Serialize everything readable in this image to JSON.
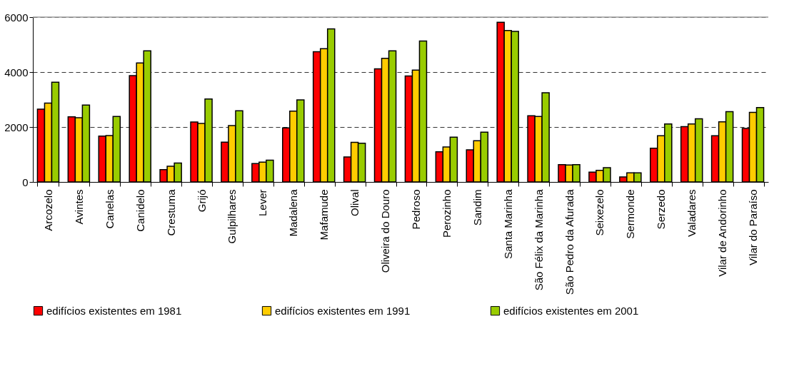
{
  "chart_data": {
    "type": "bar",
    "categories": [
      "Arcozelo",
      "Avintes",
      "Canelas",
      "Canidelo",
      "Crestuma",
      "Grijó",
      "Gulpilhares",
      "Lever",
      "Madalena",
      "Mafamude",
      "Olival",
      "Oliveira do Douro",
      "Pedroso",
      "Perozinho",
      "Sandim",
      "Santa Marinha",
      "São Félix da Marinha",
      "São Pedro da Afurada",
      "Seixezelo",
      "Sermonde",
      "Serzedo",
      "Valadares",
      "Vilar de Andorinho",
      "Vilar do Paraíso"
    ],
    "series": [
      {
        "name": "edifícios existentes em 1981",
        "color": "#ff0000",
        "values": [
          2650,
          2370,
          1670,
          3870,
          450,
          2180,
          1450,
          670,
          1970,
          4740,
          910,
          4120,
          3860,
          1100,
          1170,
          5810,
          2410,
          630,
          360,
          180,
          1230,
          2010,
          1680,
          1950
        ]
      },
      {
        "name": "edifícios existentes em 1991",
        "color": "#ffcc00",
        "values": [
          2870,
          2340,
          1690,
          4330,
          570,
          2130,
          2050,
          720,
          2580,
          4850,
          1440,
          4500,
          4070,
          1270,
          1500,
          5510,
          2380,
          620,
          420,
          330,
          1680,
          2110,
          2190,
          2530
        ]
      },
      {
        "name": "edifícios existentes em 2001",
        "color": "#99cc00",
        "values": [
          3630,
          2800,
          2380,
          4770,
          690,
          3020,
          2590,
          790,
          2990,
          5570,
          1410,
          4770,
          5130,
          1630,
          1810,
          5480,
          3250,
          630,
          520,
          330,
          2110,
          2300,
          2560,
          2710
        ]
      }
    ],
    "ylim": [
      0,
      6000
    ],
    "yticks": [
      0,
      2000,
      4000,
      6000
    ],
    "grid": "y",
    "legend": "bottom"
  }
}
